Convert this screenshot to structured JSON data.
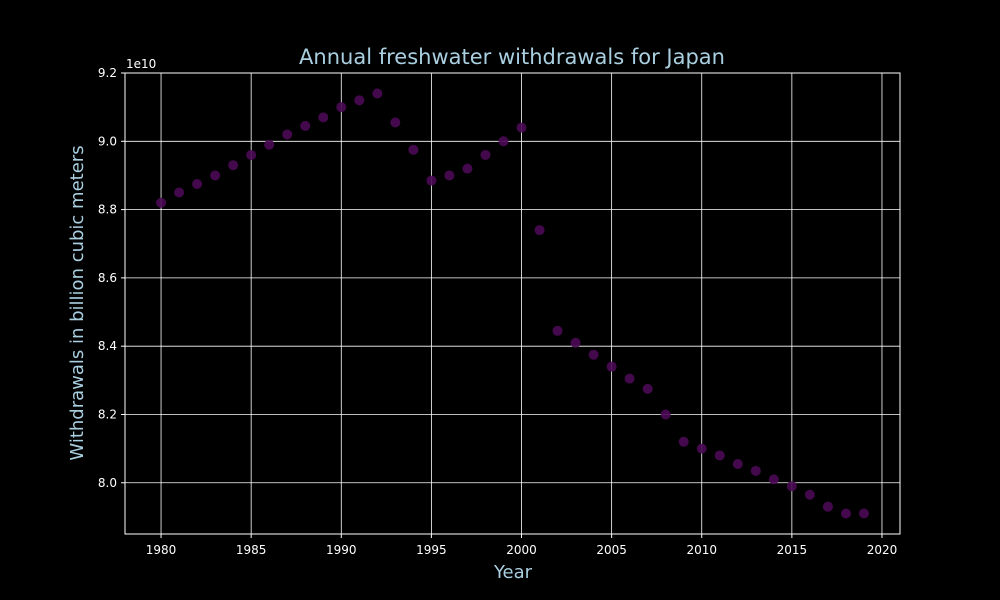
{
  "chart_data": {
    "type": "scatter",
    "title": "Annual freshwater withdrawals for Japan",
    "xlabel": "Year",
    "ylabel": "Withdrawals in billion cubic meters",
    "y_offset_label": "1e10",
    "xlim": [
      1978,
      2021
    ],
    "ylim": [
      7.85,
      9.2
    ],
    "y_scale_factor": 10000000000.0,
    "grid": true,
    "x_ticks": [
      1980,
      1985,
      1990,
      1995,
      2000,
      2005,
      2010,
      2015,
      2020
    ],
    "y_ticks": [
      8.0,
      8.2,
      8.4,
      8.6,
      8.8,
      9.0,
      9.2
    ],
    "x_tick_labels": [
      "1980",
      "1985",
      "1990",
      "1995",
      "2000",
      "2005",
      "2010",
      "2015",
      "2020"
    ],
    "y_tick_labels": [
      "8.0",
      "8.2",
      "8.4",
      "8.6",
      "8.8",
      "9.0",
      "9.2"
    ],
    "marker_color": "#4b0a55",
    "x": [
      1980,
      1981,
      1982,
      1983,
      1984,
      1985,
      1986,
      1987,
      1988,
      1989,
      1990,
      1991,
      1992,
      1993,
      1994,
      1995,
      1996,
      1997,
      1998,
      1999,
      2000,
      2001,
      2002,
      2003,
      2004,
      2005,
      2006,
      2007,
      2008,
      2009,
      2010,
      2011,
      2012,
      2013,
      2014,
      2015,
      2016,
      2017,
      2018,
      2019
    ],
    "y": [
      8.82,
      8.85,
      8.875,
      8.9,
      8.93,
      8.96,
      8.99,
      9.02,
      9.045,
      9.07,
      9.1,
      9.12,
      9.14,
      9.055,
      8.975,
      8.885,
      8.9,
      8.92,
      8.96,
      9.0,
      9.04,
      8.74,
      8.445,
      8.41,
      8.375,
      8.34,
      8.305,
      8.275,
      8.2,
      8.12,
      8.1,
      8.08,
      8.055,
      8.035,
      8.01,
      7.99,
      7.965,
      7.93,
      7.91,
      7.91
    ]
  },
  "colors": {
    "background": "#000000",
    "axes": "#ffffff",
    "grid": "#ffffff",
    "label_text": "#a9cfe0"
  }
}
